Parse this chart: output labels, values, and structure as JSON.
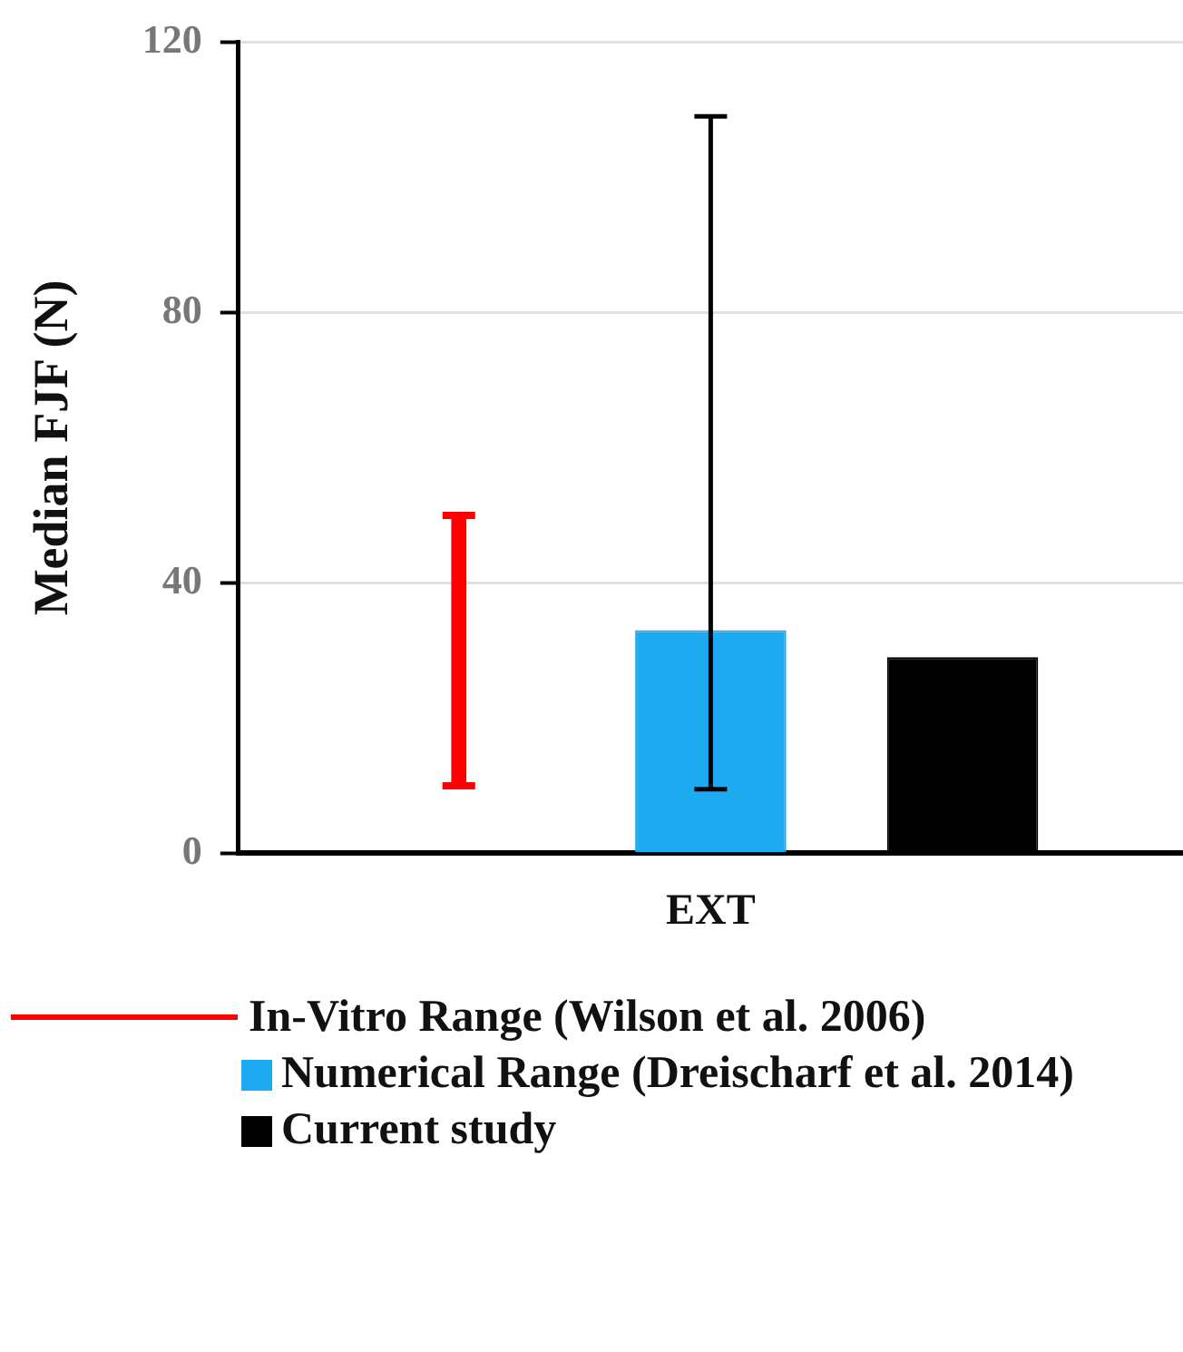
{
  "chart_data": {
    "type": "bar",
    "ylabel": "Median FJF (N)",
    "categories": [
      "EXT"
    ],
    "ylim": [
      0,
      120
    ],
    "yticks": [
      0,
      40,
      80,
      120
    ],
    "grid": "y",
    "legend": "bottom",
    "series": [
      {
        "name": "In-Vitro Range (Wilson et al. 2006)",
        "color": "#ff0000",
        "values": [
          40
        ],
        "base": [
          10
        ],
        "errors": [
          [
            10,
            50
          ]
        ]
      },
      {
        "name": "Numerical Range (Dreischarf et al. 2014)",
        "color": "#1eaaf0",
        "values": [
          33
        ],
        "errors": [
          [
            9.5,
            109
          ]
        ]
      },
      {
        "name": "Current study",
        "color": "#000000",
        "values": [
          29
        ]
      }
    ]
  }
}
